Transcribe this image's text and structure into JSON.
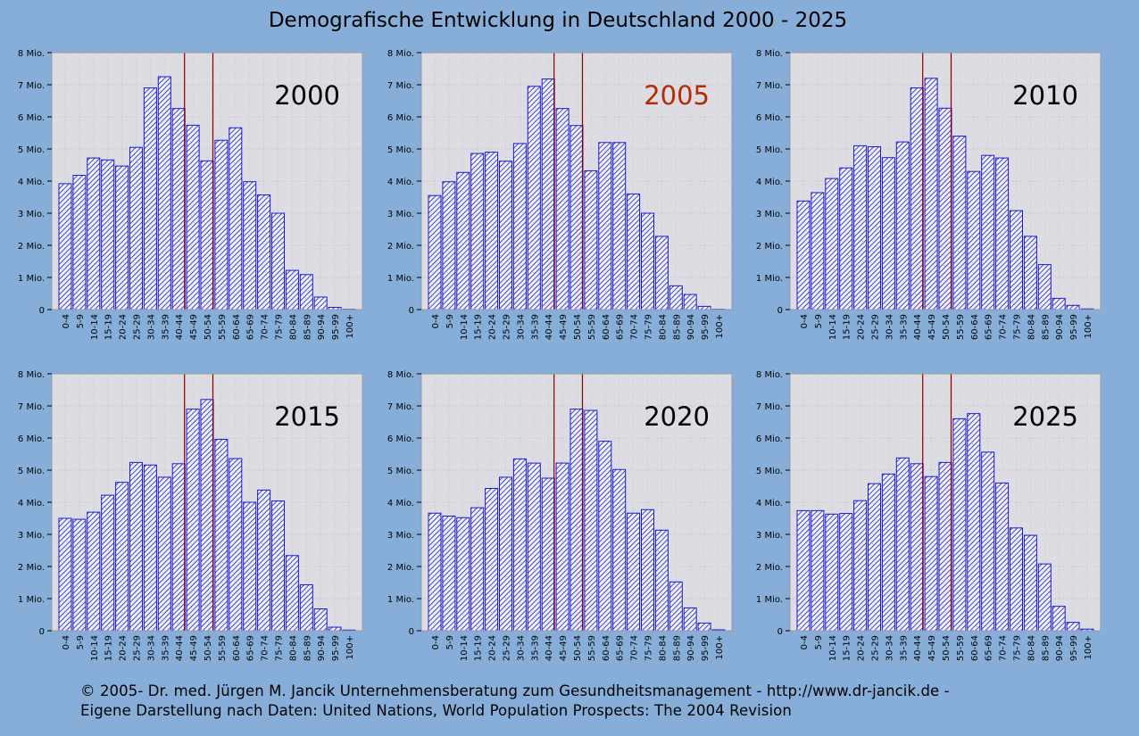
{
  "title": "Demografische Entwicklung in Deutschland 2000 - 2025",
  "footer": {
    "line1": "© 2005-  Dr. med. Jürgen M. Jancik Unternehmensberatung zum Gesundheitsmanagement - http://www.dr-jancik.de -",
    "line2": "Eigene Darstellung nach Daten: United Nations, World Population Prospects: The 2004 Revision"
  },
  "colors": {
    "background": "#86aed8",
    "plot_background": "#dcdce2",
    "bar_stroke": "#1a1acc",
    "marker_line": "#8b0000",
    "highlight_text": "#b52a00",
    "year_highlight": "#b52a00"
  },
  "chart_data": [
    {
      "type": "bar",
      "title": "2000",
      "title_highlight": false,
      "categories": [
        "0-4",
        "5-9",
        "10-14",
        "15-19",
        "20-24",
        "25-29",
        "30-34",
        "35-39",
        "40-44",
        "45-49",
        "50-54",
        "55-59",
        "60-64",
        "65-69",
        "70-74",
        "75-79",
        "80-84",
        "85-89",
        "90-94",
        "95-99",
        "100+"
      ],
      "values": [
        3.92,
        4.18,
        4.72,
        4.66,
        4.47,
        5.05,
        6.9,
        7.25,
        6.26,
        5.74,
        4.63,
        5.27,
        5.66,
        3.98,
        3.57,
        3.0,
        1.22,
        1.09,
        0.39,
        0.07,
        0.01
      ],
      "highlight_categories": [
        "40-44",
        "50-54"
      ],
      "yticks": [
        "0",
        "1 Mio.",
        "2 Mio.",
        "3 Mio.",
        "4 Mio.",
        "5 Mio.",
        "6 Mio.",
        "7 Mio.",
        "8 Mio."
      ],
      "ylim": [
        0,
        8
      ],
      "grid": true
    },
    {
      "type": "bar",
      "title": "2005",
      "title_highlight": true,
      "categories": [
        "0-4",
        "5-9",
        "10-14",
        "15-19",
        "20-24",
        "25-29",
        "30-34",
        "35-39",
        "40-44",
        "45-49",
        "50-54",
        "55-59",
        "60-64",
        "65-69",
        "70-74",
        "75-79",
        "80-84",
        "85-89",
        "90-94",
        "95-99",
        "100+"
      ],
      "values": [
        3.55,
        3.98,
        4.27,
        4.86,
        4.9,
        4.62,
        5.17,
        6.95,
        7.18,
        6.26,
        5.73,
        4.32,
        5.2,
        5.2,
        3.6,
        3.0,
        2.28,
        0.74,
        0.47,
        0.1,
        0.01
      ],
      "highlight_categories": [
        "40-44",
        "50-54"
      ],
      "yticks": [
        "0",
        "1 Mio.",
        "2 Mio.",
        "3 Mio.",
        "4 Mio.",
        "5 Mio.",
        "6 Mio.",
        "7 Mio.",
        "8 Mio."
      ],
      "ylim": [
        0,
        8
      ],
      "grid": true
    },
    {
      "type": "bar",
      "title": "2010",
      "title_highlight": false,
      "categories": [
        "0-4",
        "5-9",
        "10-14",
        "15-19",
        "20-24",
        "25-29",
        "30-34",
        "35-39",
        "40-44",
        "45-49",
        "50-54",
        "55-59",
        "60-64",
        "65-69",
        "70-74",
        "75-79",
        "80-84",
        "85-89",
        "90-94",
        "95-99",
        "100+"
      ],
      "values": [
        3.38,
        3.64,
        4.08,
        4.41,
        5.1,
        5.07,
        4.73,
        5.22,
        6.9,
        7.2,
        6.27,
        5.4,
        4.3,
        4.8,
        4.72,
        3.08,
        2.28,
        1.4,
        0.35,
        0.13,
        0.02
      ],
      "highlight_categories": [
        "40-44",
        "50-54"
      ],
      "yticks": [
        "0",
        "1 Mio.",
        "2 Mio.",
        "3 Mio.",
        "4 Mio.",
        "5 Mio.",
        "6 Mio.",
        "7 Mio.",
        "8 Mio."
      ],
      "ylim": [
        0,
        8
      ],
      "grid": true
    },
    {
      "type": "bar",
      "title": "2015",
      "title_highlight": false,
      "categories": [
        "0-4",
        "5-9",
        "10-14",
        "15-19",
        "20-24",
        "25-29",
        "30-34",
        "35-39",
        "40-44",
        "45-49",
        "50-54",
        "55-59",
        "60-64",
        "65-69",
        "70-74",
        "75-79",
        "80-84",
        "85-89",
        "90-94",
        "95-99",
        "100+"
      ],
      "values": [
        3.5,
        3.47,
        3.69,
        4.22,
        4.62,
        5.24,
        5.16,
        4.78,
        5.2,
        6.9,
        7.2,
        5.96,
        5.36,
        4.0,
        4.38,
        4.04,
        2.34,
        1.43,
        0.68,
        0.11,
        0.02
      ],
      "highlight_categories": [
        "40-44",
        "50-54"
      ],
      "yticks": [
        "0",
        "1 Mio.",
        "2 Mio.",
        "3 Mio.",
        "4 Mio.",
        "5 Mio.",
        "6 Mio.",
        "7 Mio.",
        "8 Mio."
      ],
      "ylim": [
        0,
        8
      ],
      "grid": true
    },
    {
      "type": "bar",
      "title": "2020",
      "title_highlight": false,
      "categories": [
        "0-4",
        "5-9",
        "10-14",
        "15-19",
        "20-24",
        "25-29",
        "30-34",
        "35-39",
        "40-44",
        "45-49",
        "50-54",
        "55-59",
        "60-64",
        "65-69",
        "70-74",
        "75-79",
        "80-84",
        "85-89",
        "90-94",
        "95-99",
        "100+"
      ],
      "values": [
        3.66,
        3.57,
        3.52,
        3.83,
        4.43,
        4.78,
        5.35,
        5.22,
        4.75,
        5.22,
        6.9,
        6.86,
        5.9,
        5.02,
        3.66,
        3.77,
        3.13,
        1.52,
        0.71,
        0.24,
        0.03
      ],
      "highlight_categories": [
        "40-44",
        "50-54"
      ],
      "yticks": [
        "0",
        "1 Mio.",
        "2 Mio.",
        "3 Mio.",
        "4 Mio.",
        "5 Mio.",
        "6 Mio.",
        "7 Mio.",
        "8 Mio."
      ],
      "ylim": [
        0,
        8
      ],
      "grid": true
    },
    {
      "type": "bar",
      "title": "2025",
      "title_highlight": false,
      "categories": [
        "0-4",
        "5-9",
        "10-14",
        "15-19",
        "20-24",
        "25-29",
        "30-34",
        "35-39",
        "40-44",
        "45-49",
        "50-54",
        "55-59",
        "60-64",
        "65-69",
        "70-74",
        "75-79",
        "80-84",
        "85-89",
        "90-94",
        "95-99",
        "100+"
      ],
      "values": [
        3.74,
        3.74,
        3.63,
        3.65,
        4.05,
        4.58,
        4.88,
        5.38,
        5.2,
        4.8,
        5.24,
        6.6,
        6.76,
        5.56,
        4.6,
        3.2,
        2.97,
        2.08,
        0.76,
        0.26,
        0.05
      ],
      "highlight_categories": [
        "40-44",
        "50-54"
      ],
      "yticks": [
        "0",
        "1 Mio.",
        "2 Mio.",
        "3 Mio.",
        "4 Mio.",
        "5 Mio.",
        "6 Mio.",
        "7 Mio.",
        "8 Mio."
      ],
      "ylim": [
        0,
        8
      ],
      "grid": true
    }
  ]
}
